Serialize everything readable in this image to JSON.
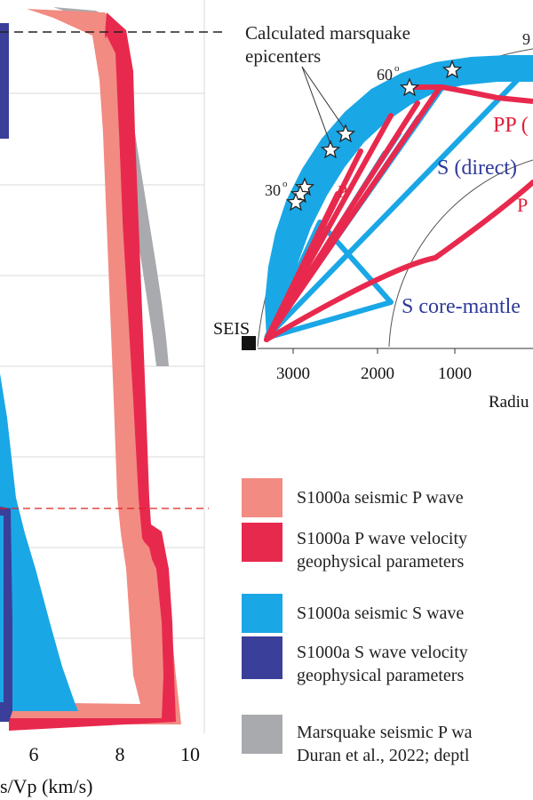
{
  "left_panel": {
    "x_ticks": [
      "6",
      "8",
      "10"
    ],
    "x_label": "s/Vp (km/s)"
  },
  "right_panel": {
    "epicenter_label_line1": "Calculated marsquake",
    "epicenter_label_line2": "epicenters",
    "angle_labels": [
      "60",
      "30",
      "9"
    ],
    "degree_symbol": "o",
    "station_label": "SEIS",
    "ray_labels": {
      "pp": "PP (",
      "p1": "P",
      "p2": "P",
      "s_direct": "S (direct)",
      "s_core_mantle": "S core-mantle"
    },
    "radius_ticks": [
      "3000",
      "2000",
      "1000"
    ],
    "radius_label": "Radiu"
  },
  "legend": {
    "items": [
      {
        "color": "#f28b82",
        "line1": "S1000a seismic P wave",
        "line2": ""
      },
      {
        "color": "#e8294e",
        "line1": "S1000a P wave velocity",
        "line2": "geophysical parameters"
      },
      {
        "color": "#1aa7e6",
        "line1": "S1000a seismic S wave",
        "line2": ""
      },
      {
        "color": "#3a3f9a",
        "line1": "S1000a S wave velocity",
        "line2": "geophysical parameters"
      },
      {
        "color": "#a9aaad",
        "line1": "Marsquake seismic P wa",
        "line2": "Duran et al., 2022; deptl"
      }
    ]
  },
  "colors": {
    "p_light": "#f28b82",
    "p_dark": "#e8294e",
    "s_light": "#1aa7e6",
    "s_dark": "#3a3f9a",
    "marsquake_gray": "#a9aaad",
    "label_red": "#e0203a",
    "label_blue": "#2f3a9a"
  }
}
